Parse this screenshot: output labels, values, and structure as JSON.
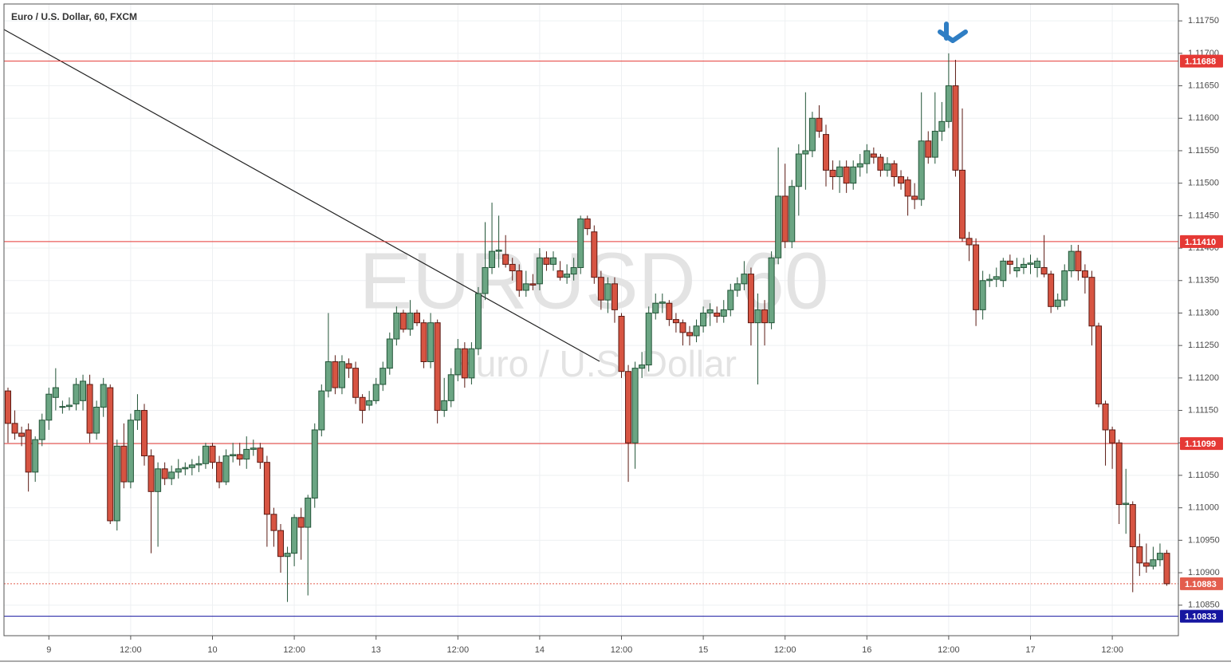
{
  "chart_data": {
    "type": "candlestick",
    "title": "Euro / U.S. Dollar, 60, FXCM",
    "watermark": "EURUSD, 60",
    "watermark_subtitle": "Euro / U.S. Dollar",
    "up_color": "#6ba583",
    "up_border": "#225437",
    "down_color": "#d75442",
    "down_border": "#5b1a13",
    "grid": true,
    "ylim": [
      1.10803,
      1.11776
    ],
    "yticks": [
      {
        "value": 1.1175,
        "label": "1.11750"
      },
      {
        "value": 1.117,
        "label": "1.11700"
      },
      {
        "value": 1.1165,
        "label": "1.11650"
      },
      {
        "value": 1.116,
        "label": "1.11600"
      },
      {
        "value": 1.1155,
        "label": "1.11550"
      },
      {
        "value": 1.115,
        "label": "1.11500"
      },
      {
        "value": 1.1145,
        "label": "1.11450"
      },
      {
        "value": 1.114,
        "label": "1.11400"
      },
      {
        "value": 1.1135,
        "label": "1.11350"
      },
      {
        "value": 1.113,
        "label": "1.11300"
      },
      {
        "value": 1.1125,
        "label": "1.11250"
      },
      {
        "value": 1.112,
        "label": "1.11200"
      },
      {
        "value": 1.1115,
        "label": "1.11150"
      },
      {
        "value": 1.111,
        "label": "1.11100"
      },
      {
        "value": 1.1105,
        "label": "1.11050"
      },
      {
        "value": 1.11,
        "label": "1.11000"
      },
      {
        "value": 1.1095,
        "label": "1.10950"
      },
      {
        "value": 1.109,
        "label": "1.10900"
      },
      {
        "value": 1.1085,
        "label": "1.10850"
      }
    ],
    "levels": [
      {
        "value": 1.11688,
        "color": "#e53935",
        "line": "solid"
      },
      {
        "value": 1.1141,
        "label": "1.11410",
        "color": "#e53935",
        "line": "solid"
      },
      {
        "value": 1.11099,
        "color": "#e53935",
        "line": "solid"
      },
      {
        "value": 1.10883,
        "color": "#e35d4d",
        "line": "dotted"
      },
      {
        "value": 1.10833,
        "color": "#1515a0",
        "line": "solid"
      }
    ],
    "categories": [
      null,
      null,
      null,
      null,
      null,
      null,
      "9",
      null,
      null,
      null,
      null,
      null,
      null,
      null,
      null,
      null,
      null,
      null,
      "12:00",
      null,
      null,
      null,
      null,
      null,
      null,
      null,
      null,
      null,
      null,
      null,
      "10",
      null,
      null,
      null,
      null,
      null,
      null,
      null,
      null,
      null,
      null,
      null,
      "12:00",
      null,
      null,
      null,
      null,
      null,
      null,
      null,
      null,
      null,
      null,
      null,
      "13",
      null,
      null,
      null,
      null,
      null,
      null,
      null,
      null,
      null,
      null,
      null,
      "12:00",
      null,
      null,
      null,
      null,
      null,
      null,
      null,
      null,
      null,
      null,
      null,
      "14",
      null,
      null,
      null,
      null,
      null,
      null,
      null,
      null,
      null,
      null,
      null,
      "12:00",
      null,
      null,
      null,
      null,
      null,
      null,
      null,
      null,
      null,
      null,
      null,
      "15",
      null,
      null,
      null,
      null,
      null,
      null,
      null,
      null,
      null,
      null,
      null,
      "12:00",
      null,
      null,
      null,
      null,
      null,
      null,
      null,
      null,
      null,
      null,
      null,
      "16",
      null,
      null,
      null,
      null,
      null,
      null,
      null,
      null,
      null,
      null,
      null,
      "12:00",
      null,
      null,
      null,
      null,
      null,
      null,
      null,
      null,
      null,
      null,
      null,
      "17",
      null,
      null,
      null,
      null,
      null,
      null,
      null,
      null,
      null,
      null,
      null,
      "12:00",
      null,
      null,
      null,
      null,
      null,
      null,
      null,
      null
    ],
    "candles": [
      [
        1.1118,
        1.11185,
        1.111,
        1.1113
      ],
      [
        1.1113,
        1.1115,
        1.11105,
        1.11115
      ],
      [
        1.11115,
        1.11125,
        1.11095,
        1.1111
      ],
      [
        1.1112,
        1.1113,
        1.11025,
        1.11055
      ],
      [
        1.11055,
        1.1111,
        1.1104,
        1.11105
      ],
      [
        1.11105,
        1.11145,
        1.11095,
        1.11135
      ],
      [
        1.11135,
        1.11185,
        1.1112,
        1.11175
      ],
      [
        1.1117,
        1.11215,
        1.1115,
        1.11185
      ],
      [
        1.11155,
        1.11165,
        1.11145,
        1.11156
      ],
      [
        1.11156,
        1.1117,
        1.1115,
        1.11158
      ],
      [
        1.1116,
        1.112,
        1.1115,
        1.1119
      ],
      [
        1.11165,
        1.11205,
        1.1115,
        1.11195
      ],
      [
        1.1119,
        1.11205,
        1.111,
        1.11115
      ],
      [
        1.11115,
        1.11165,
        1.11105,
        1.11155
      ],
      [
        1.11155,
        1.112,
        1.1114,
        1.1119
      ],
      [
        1.11185,
        1.1119,
        1.10975,
        1.1098
      ],
      [
        1.1098,
        1.11105,
        1.10965,
        1.11095
      ],
      [
        1.11095,
        1.1113,
        1.1103,
        1.1104
      ],
      [
        1.1104,
        1.11145,
        1.1103,
        1.11135
      ],
      [
        1.11135,
        1.11175,
        1.1112,
        1.1115
      ],
      [
        1.1115,
        1.1116,
        1.11065,
        1.1108
      ],
      [
        1.1108,
        1.1109,
        1.1093,
        1.11025
      ],
      [
        1.11025,
        1.1107,
        1.1094,
        1.1106
      ],
      [
        1.1106,
        1.1107,
        1.11035,
        1.11045
      ],
      [
        1.11045,
        1.11065,
        1.11035,
        1.11055
      ],
      [
        1.11055,
        1.11075,
        1.11045,
        1.1106
      ],
      [
        1.1106,
        1.1107,
        1.1105,
        1.11062
      ],
      [
        1.11062,
        1.11075,
        1.1105,
        1.11066
      ],
      [
        1.11066,
        1.1108,
        1.11055,
        1.11068
      ],
      [
        1.11068,
        1.111,
        1.1106,
        1.11095
      ],
      [
        1.11095,
        1.111,
        1.1106,
        1.1107
      ],
      [
        1.1107,
        1.1108,
        1.1103,
        1.1104
      ],
      [
        1.1104,
        1.1109,
        1.11035,
        1.1108
      ],
      [
        1.1108,
        1.111,
        1.1107,
        1.11082
      ],
      [
        1.11082,
        1.111,
        1.11065,
        1.11075
      ],
      [
        1.11075,
        1.1111,
        1.1106,
        1.1109
      ],
      [
        1.1109,
        1.11105,
        1.1108,
        1.11092
      ],
      [
        1.11092,
        1.111,
        1.1106,
        1.1107
      ],
      [
        1.1107,
        1.1108,
        1.1094,
        1.1099
      ],
      [
        1.1099,
        1.11,
        1.1094,
        1.10965
      ],
      [
        1.10965,
        1.10975,
        1.109,
        1.10925
      ],
      [
        1.10925,
        1.1094,
        1.10855,
        1.1093
      ],
      [
        1.1093,
        1.1099,
        1.1091,
        1.10985
      ],
      [
        1.10985,
        1.11,
        1.1092,
        1.1097
      ],
      [
        1.1097,
        1.1102,
        1.10865,
        1.11015
      ],
      [
        1.11015,
        1.1113,
        1.11,
        1.1112
      ],
      [
        1.1112,
        1.1119,
        1.1111,
        1.1118
      ],
      [
        1.1118,
        1.113,
        1.1117,
        1.11225
      ],
      [
        1.11225,
        1.11235,
        1.11175,
        1.11185
      ],
      [
        1.11185,
        1.11235,
        1.11175,
        1.11225
      ],
      [
        1.11222,
        1.1123,
        1.112,
        1.11215
      ],
      [
        1.11215,
        1.11225,
        1.1116,
        1.1117
      ],
      [
        1.1117,
        1.11175,
        1.1113,
        1.1115
      ],
      [
        1.11158,
        1.1118,
        1.1115,
        1.11165
      ],
      [
        1.11165,
        1.112,
        1.1116,
        1.1119
      ],
      [
        1.1119,
        1.11225,
        1.1118,
        1.11215
      ],
      [
        1.11215,
        1.1127,
        1.11205,
        1.1126
      ],
      [
        1.1126,
        1.1131,
        1.1125,
        1.113
      ],
      [
        1.113,
        1.11305,
        1.1127,
        1.11275
      ],
      [
        1.11275,
        1.1132,
        1.11265,
        1.113
      ],
      [
        1.113,
        1.11305,
        1.1128,
        1.11285
      ],
      [
        1.11285,
        1.1129,
        1.11215,
        1.11225
      ],
      [
        1.11225,
        1.113,
        1.11215,
        1.11285
      ],
      [
        1.11285,
        1.1129,
        1.1113,
        1.1115
      ],
      [
        1.1115,
        1.112,
        1.1114,
        1.11165
      ],
      [
        1.11165,
        1.11215,
        1.11155,
        1.11205
      ],
      [
        1.11205,
        1.1126,
        1.11195,
        1.11245
      ],
      [
        1.11245,
        1.11255,
        1.11185,
        1.112
      ],
      [
        1.112,
        1.11255,
        1.1119,
        1.11245
      ],
      [
        1.11245,
        1.1134,
        1.11235,
        1.1133
      ],
      [
        1.1133,
        1.1144,
        1.1132,
        1.1137
      ],
      [
        1.1137,
        1.1147,
        1.1136,
        1.11395
      ],
      [
        1.11395,
        1.1145,
        1.1137,
        1.11397
      ],
      [
        1.1139,
        1.1142,
        1.1137,
        1.11375
      ],
      [
        1.11375,
        1.11385,
        1.1135,
        1.11365
      ],
      [
        1.11365,
        1.11375,
        1.11325,
        1.11335
      ],
      [
        1.11335,
        1.11365,
        1.11325,
        1.11345
      ],
      [
        1.11345,
        1.1136,
        1.11335,
        1.11343
      ],
      [
        1.11345,
        1.114,
        1.11335,
        1.11385
      ],
      [
        1.11385,
        1.11395,
        1.11365,
        1.11375
      ],
      [
        1.11375,
        1.11395,
        1.11365,
        1.11385
      ],
      [
        1.11365,
        1.1138,
        1.1135,
        1.11355
      ],
      [
        1.11355,
        1.11375,
        1.11345,
        1.1136
      ],
      [
        1.1136,
        1.11385,
        1.1135,
        1.1137
      ],
      [
        1.1137,
        1.1145,
        1.1136,
        1.11445
      ],
      [
        1.11445,
        1.1145,
        1.1142,
        1.1143
      ],
      [
        1.11425,
        1.11435,
        1.11345,
        1.11355
      ],
      [
        1.11355,
        1.11365,
        1.11305,
        1.1132
      ],
      [
        1.1132,
        1.11355,
        1.113,
        1.11345
      ],
      [
        1.11345,
        1.11355,
        1.11285,
        1.11305
      ],
      [
        1.11295,
        1.113,
        1.112,
        1.1121
      ],
      [
        1.1121,
        1.1122,
        1.1104,
        1.111
      ],
      [
        1.111,
        1.11225,
        1.1106,
        1.11215
      ],
      [
        1.11215,
        1.1124,
        1.112,
        1.1122
      ],
      [
        1.1122,
        1.1131,
        1.1121,
        1.113
      ],
      [
        1.113,
        1.1133,
        1.1129,
        1.11315
      ],
      [
        1.11315,
        1.1133,
        1.113,
        1.11317
      ],
      [
        1.11315,
        1.1132,
        1.1128,
        1.1129
      ],
      [
        1.1129,
        1.113,
        1.1127,
        1.11285
      ],
      [
        1.11285,
        1.1129,
        1.1125,
        1.1127
      ],
      [
        1.1127,
        1.1128,
        1.1125,
        1.11265
      ],
      [
        1.11265,
        1.1129,
        1.11255,
        1.1128
      ],
      [
        1.1128,
        1.1131,
        1.1127,
        1.113
      ],
      [
        1.113,
        1.11315,
        1.1128,
        1.11305
      ],
      [
        1.113,
        1.1131,
        1.11285,
        1.11295
      ],
      [
        1.11295,
        1.1132,
        1.11285,
        1.11305
      ],
      [
        1.11305,
        1.11345,
        1.11295,
        1.11335
      ],
      [
        1.11335,
        1.11355,
        1.11325,
        1.11345
      ],
      [
        1.11345,
        1.1138,
        1.11335,
        1.1136
      ],
      [
        1.1136,
        1.1137,
        1.1125,
        1.11285
      ],
      [
        1.11285,
        1.1133,
        1.1119,
        1.11305
      ],
      [
        1.11305,
        1.1132,
        1.1125,
        1.11285
      ],
      [
        1.11285,
        1.11395,
        1.11275,
        1.11385
      ],
      [
        1.11385,
        1.11555,
        1.11375,
        1.1148
      ],
      [
        1.1148,
        1.1153,
        1.114,
        1.1141
      ],
      [
        1.1141,
        1.11505,
        1.114,
        1.11495
      ],
      [
        1.11495,
        1.1156,
        1.1145,
        1.11545
      ],
      [
        1.11545,
        1.1164,
        1.1149,
        1.1155
      ],
      [
        1.1155,
        1.1161,
        1.1154,
        1.116
      ],
      [
        1.116,
        1.1162,
        1.1157,
        1.1158
      ],
      [
        1.11575,
        1.1159,
        1.11495,
        1.1152
      ],
      [
        1.1152,
        1.11535,
        1.1149,
        1.1151
      ],
      [
        1.1151,
        1.11535,
        1.11485,
        1.11525
      ],
      [
        1.11525,
        1.11535,
        1.11485,
        1.115
      ],
      [
        1.115,
        1.11535,
        1.1149,
        1.11525
      ],
      [
        1.11525,
        1.11545,
        1.1151,
        1.1153
      ],
      [
        1.1153,
        1.1156,
        1.11515,
        1.1155
      ],
      [
        1.11545,
        1.11555,
        1.1153,
        1.1154
      ],
      [
        1.1154,
        1.11545,
        1.1151,
        1.1152
      ],
      [
        1.1152,
        1.1154,
        1.1151,
        1.1153
      ],
      [
        1.1153,
        1.11535,
        1.11495,
        1.1151
      ],
      [
        1.1151,
        1.1152,
        1.1149,
        1.115
      ],
      [
        1.11505,
        1.1151,
        1.1145,
        1.1148
      ],
      [
        1.1148,
        1.115,
        1.1146,
        1.11475
      ],
      [
        1.11475,
        1.1164,
        1.11465,
        1.11565
      ],
      [
        1.11565,
        1.1158,
        1.1153,
        1.1154
      ],
      [
        1.1154,
        1.1164,
        1.1153,
        1.1158
      ],
      [
        1.1158,
        1.11625,
        1.11565,
        1.11595
      ],
      [
        1.11595,
        1.117,
        1.11585,
        1.1165
      ],
      [
        1.1165,
        1.1169,
        1.1151,
        1.1152
      ],
      [
        1.1152,
        1.11615,
        1.1141,
        1.11415
      ],
      [
        1.11415,
        1.11425,
        1.1138,
        1.11405
      ],
      [
        1.11405,
        1.11415,
        1.1128,
        1.11305
      ],
      [
        1.11305,
        1.11365,
        1.1129,
        1.1135
      ],
      [
        1.1135,
        1.1136,
        1.1134,
        1.11352
      ],
      [
        1.11352,
        1.1137,
        1.1134,
        1.11356
      ],
      [
        1.1135,
        1.11385,
        1.1134,
        1.1138
      ],
      [
        1.1138,
        1.1139,
        1.1136,
        1.11375
      ],
      [
        1.11365,
        1.11385,
        1.11355,
        1.1137
      ],
      [
        1.1137,
        1.11385,
        1.1136,
        1.11375
      ],
      [
        1.11375,
        1.1139,
        1.1136,
        1.11377
      ],
      [
        1.1137,
        1.11385,
        1.11355,
        1.1138
      ],
      [
        1.1137,
        1.1142,
        1.11355,
        1.1136
      ],
      [
        1.1136,
        1.11365,
        1.113,
        1.1131
      ],
      [
        1.1131,
        1.1133,
        1.11305,
        1.1132
      ],
      [
        1.1132,
        1.11375,
        1.1131,
        1.11365
      ],
      [
        1.11365,
        1.11405,
        1.11355,
        1.11395
      ],
      [
        1.11395,
        1.11405,
        1.1135,
        1.11365
      ],
      [
        1.11365,
        1.11375,
        1.1133,
        1.11355
      ],
      [
        1.11355,
        1.11365,
        1.1125,
        1.1128
      ],
      [
        1.1128,
        1.11285,
        1.11155,
        1.1116
      ],
      [
        1.1116,
        1.11165,
        1.11065,
        1.1112
      ],
      [
        1.1112,
        1.11125,
        1.1106,
        1.111
      ],
      [
        1.111,
        1.11105,
        1.10975,
        1.11005
      ],
      [
        1.11005,
        1.1106,
        1.1096,
        1.11007
      ],
      [
        1.11005,
        1.1101,
        1.1087,
        1.1094
      ],
      [
        1.1094,
        1.1096,
        1.10895,
        1.10915
      ],
      [
        1.10915,
        1.10945,
        1.109,
        1.1091
      ],
      [
        1.1091,
        1.1094,
        1.10905,
        1.1092
      ],
      [
        1.1092,
        1.10945,
        1.1091,
        1.1093
      ],
      [
        1.1093,
        1.10935,
        1.1088,
        1.10883
      ]
    ]
  }
}
